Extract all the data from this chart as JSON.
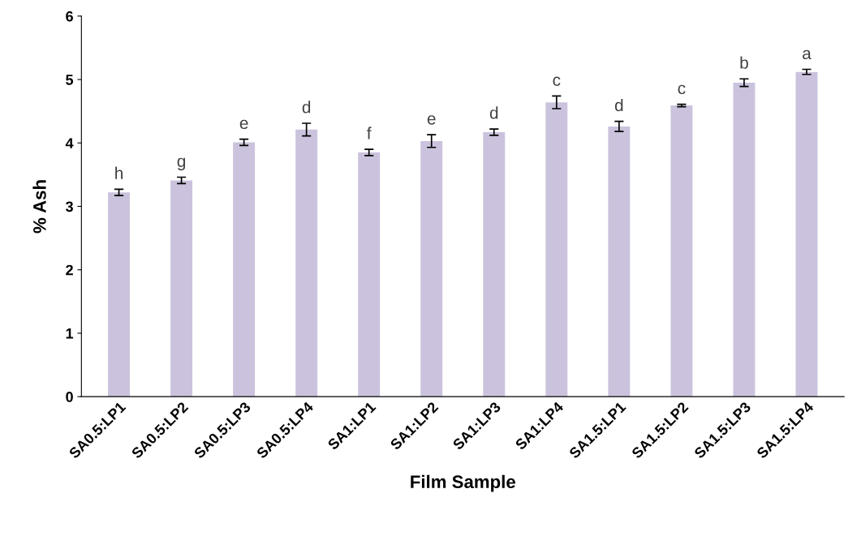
{
  "chart_data": {
    "type": "bar",
    "xlabel": "Film Sample",
    "ylabel": "% Ash",
    "categories": [
      "SA0.5:LP1",
      "SA0.5:LP2",
      "SA0.5:LP3",
      "SA0.5:LP4",
      "SA1:LP1",
      "SA1:LP2",
      "SA1:LP3",
      "SA1:LP4",
      "SA1.5:LP1",
      "SA1.5:LP2",
      "SA1.5:LP3",
      "SA1.5:LP4"
    ],
    "values": [
      3.22,
      3.41,
      4.01,
      4.21,
      3.85,
      4.03,
      4.17,
      4.64,
      4.26,
      4.59,
      4.95,
      5.12
    ],
    "errors": [
      0.05,
      0.05,
      0.05,
      0.1,
      0.05,
      0.1,
      0.05,
      0.1,
      0.08,
      0.02,
      0.06,
      0.04
    ],
    "color": "#cbc3dd",
    "ylim": [
      0,
      6
    ],
    "yticks": [
      0,
      1,
      2,
      3,
      4,
      5,
      6
    ],
    "grid": false,
    "legend": false,
    "annotations": [
      "h",
      "g",
      "e",
      "d",
      "f",
      "e",
      "d",
      "c",
      "d",
      "c",
      "b",
      "a"
    ]
  }
}
